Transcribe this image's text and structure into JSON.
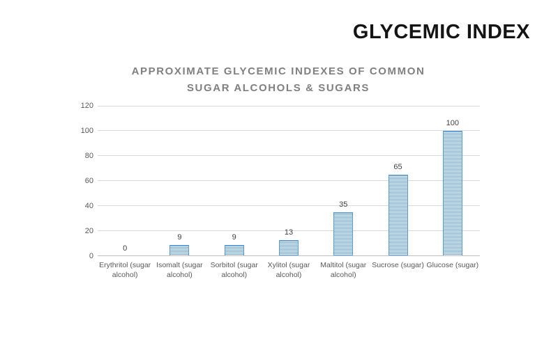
{
  "header": {
    "title": "GLYCEMIC INDEX"
  },
  "colors": {
    "background": "#FFFFFF",
    "header_text": "#141414",
    "title_text": "#808080",
    "tick_text": "#595959",
    "value_text": "#404040",
    "gridline": "#D9D9D9",
    "axis_line": "#BFBFBF",
    "bar_border": "#5B9BD5",
    "bar_stripe": "#74A9DA",
    "bar_stripe_bg": "#EDF4FB"
  },
  "chart_data": {
    "type": "bar",
    "title": "APPROXIMATE GLYCEMIC INDEXES OF COMMON SUGAR ALCOHOLS & SUGARS",
    "title_lines": [
      "APPROXIMATE GLYCEMIC INDEXES OF COMMON",
      "SUGAR ALCOHOLS & SUGARS"
    ],
    "categories": [
      "Erythritol (sugar alcohol)",
      "Isomalt (sugar alcohol)",
      "Sorbitol (sugar alcohol)",
      "Xylitol (sugar alcohol)",
      "Maltitol (sugar alcohol)",
      "Sucrose (sugar)",
      "Glucose (sugar)"
    ],
    "values": [
      0,
      9,
      9,
      13,
      35,
      65,
      100
    ],
    "yticks": [
      0,
      20,
      40,
      60,
      80,
      100,
      120
    ],
    "ylim": [
      0,
      120
    ],
    "xlabel": "",
    "ylabel": "",
    "grid": true,
    "legend": "none",
    "bar_fill_pattern": "horizontal-stripes",
    "data_labels": true
  }
}
